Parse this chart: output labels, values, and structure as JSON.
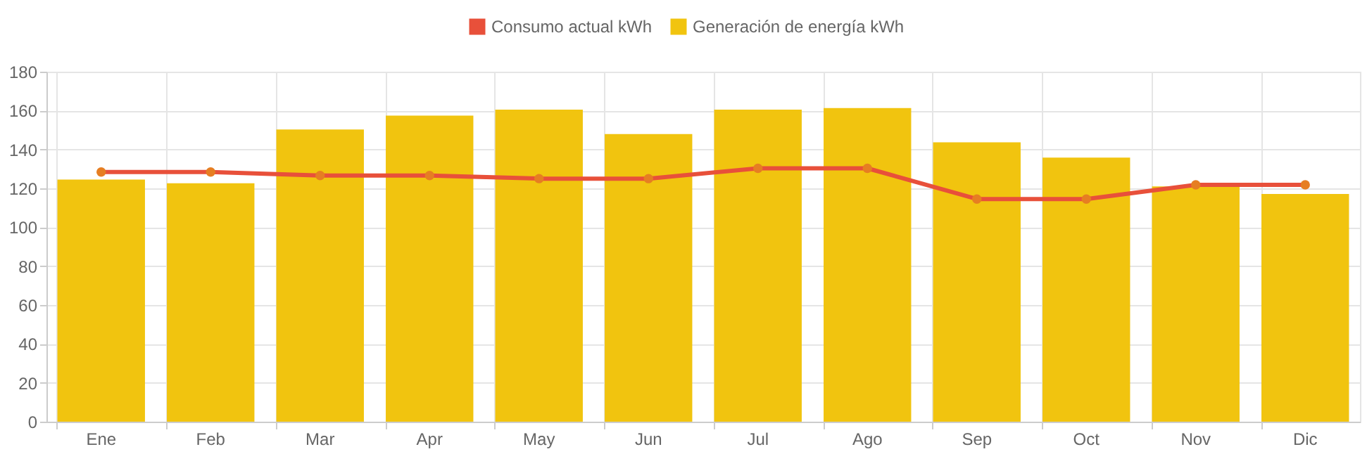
{
  "chart_data": {
    "type": "bar",
    "categories": [
      "Ene",
      "Feb",
      "Mar",
      "Apr",
      "May",
      "Jun",
      "Jul",
      "Ago",
      "Sep",
      "Oct",
      "Nov",
      "Dic"
    ],
    "series": [
      {
        "name": "Consumo actual kWh",
        "type": "line",
        "color": "#e8503a",
        "values": [
          128.4,
          128.4,
          126.6,
          126.6,
          125,
          125,
          130.3,
          130.3,
          114.5,
          114.5,
          121.8,
          121.8
        ]
      },
      {
        "name": "Generación de energía kWh",
        "type": "bar",
        "color": "#f1c40f",
        "values": [
          124.5,
          122.6,
          150.3,
          157.4,
          160.5,
          147.9,
          160.5,
          161.3,
          143.7,
          135.8,
          121,
          117.1
        ]
      }
    ],
    "ylim": [
      0,
      180
    ],
    "yticks": [
      0,
      20,
      40,
      60,
      80,
      100,
      120,
      140,
      160,
      180
    ],
    "grid": true,
    "legend": "top",
    "marker": "circle",
    "line_style": "solid"
  }
}
